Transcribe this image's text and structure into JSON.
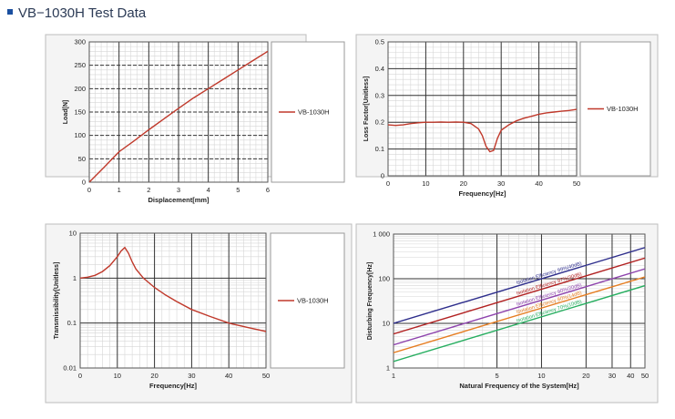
{
  "page": {
    "title": "VB−1030H Test Data"
  },
  "chart_data": [
    {
      "type": "line",
      "xlabel": "Displacement[mm]",
      "ylabel": "Load[N]",
      "xlim": [
        0,
        6
      ],
      "ylim": [
        0,
        300
      ],
      "xticks": [
        "0",
        "1",
        "2",
        "3",
        "4",
        "5",
        "6"
      ],
      "yticks": [
        "0",
        "50",
        "100",
        "150",
        "200",
        "250",
        "300"
      ],
      "legend": "right",
      "series": [
        {
          "name": "VB-1030H",
          "color": "#c0392b",
          "x": [
            0,
            0.5,
            1,
            1.5,
            2,
            2.5,
            3,
            3.5,
            4,
            4.5,
            5,
            5.5,
            6
          ],
          "y": [
            0,
            32,
            65,
            88,
            112,
            135,
            158,
            180,
            200,
            220,
            240,
            260,
            280
          ]
        }
      ]
    },
    {
      "type": "line",
      "xlabel": "Frequency[Hz]",
      "ylabel": "Loss Factor[Unitless]",
      "xlim": [
        0,
        50
      ],
      "ylim": [
        0,
        0.5
      ],
      "xticks": [
        "0",
        "10",
        "20",
        "30",
        "40",
        "50"
      ],
      "yticks": [
        "0",
        "0.1",
        "0.2",
        "0.3",
        "0.4",
        "0.5"
      ],
      "legend": "right",
      "series": [
        {
          "name": "VB-1030H",
          "color": "#c0392b",
          "x": [
            0,
            2,
            4,
            6,
            8,
            10,
            12,
            14,
            16,
            18,
            20,
            22,
            24,
            25,
            26,
            27,
            28,
            29,
            30,
            32,
            34,
            36,
            38,
            40,
            42,
            44,
            46,
            48,
            50
          ],
          "y": [
            0.19,
            0.188,
            0.19,
            0.195,
            0.198,
            0.2,
            0.2,
            0.201,
            0.2,
            0.201,
            0.2,
            0.195,
            0.175,
            0.15,
            0.11,
            0.09,
            0.095,
            0.14,
            0.17,
            0.19,
            0.205,
            0.215,
            0.222,
            0.23,
            0.235,
            0.238,
            0.241,
            0.244,
            0.248
          ]
        }
      ]
    },
    {
      "type": "line",
      "xlabel": "Frequency[Hz]",
      "ylabel": "Transmissibility[Unitless]",
      "xlim": [
        0,
        50
      ],
      "ylim": [
        0.01,
        10
      ],
      "yscale": "log",
      "xticks": [
        "0",
        "10",
        "20",
        "30",
        "40",
        "50"
      ],
      "yticks": [
        "0.01",
        "0.1",
        "1",
        "10"
      ],
      "legend": "right",
      "series": [
        {
          "name": "VB-1030H",
          "color": "#c0392b",
          "x": [
            0,
            2,
            4,
            6,
            8,
            10,
            11,
            12,
            13,
            14,
            15,
            17,
            20,
            23,
            26,
            30,
            35,
            40,
            45,
            50
          ],
          "y": [
            1.0,
            1.05,
            1.15,
            1.4,
            1.9,
            3.0,
            4.0,
            4.8,
            3.6,
            2.3,
            1.6,
            1.0,
            0.62,
            0.42,
            0.3,
            0.2,
            0.14,
            0.1,
            0.08,
            0.065
          ]
        }
      ]
    },
    {
      "type": "line",
      "xlabel": "Natural Frequency of the System[Hz]",
      "ylabel": "Disturbing Frequency[Hz]",
      "xlim": [
        1,
        50
      ],
      "ylim": [
        1,
        1000
      ],
      "xscale": "log",
      "yscale": "log",
      "xticks": [
        "1",
        "5",
        "10",
        "20",
        "30",
        "40",
        "50"
      ],
      "yticks": [
        "1",
        "10",
        "100",
        "1 000"
      ],
      "series": [
        {
          "name": "Isolation Efficiency 99%(40dB)",
          "color": "#2e2e8c",
          "x": [
            1,
            50
          ],
          "y": [
            10,
            500
          ]
        },
        {
          "name": "Isolation Efficiency 97%(30dB)",
          "color": "#b22222",
          "x": [
            1,
            50
          ],
          "y": [
            5.8,
            290
          ]
        },
        {
          "name": "Isolation Efficiency 90%(20dB)",
          "color": "#8e44ad",
          "x": [
            1,
            50
          ],
          "y": [
            3.3,
            166
          ]
        },
        {
          "name": "Isolation Efficiency 80%(14dB)",
          "color": "#e67e22",
          "x": [
            1,
            50
          ],
          "y": [
            2.2,
            110
          ]
        },
        {
          "name": "Isolation Efficiency 70%(10dB)",
          "color": "#27ae60",
          "x": [
            1,
            50
          ],
          "y": [
            1.4,
            70
          ]
        }
      ]
    }
  ]
}
